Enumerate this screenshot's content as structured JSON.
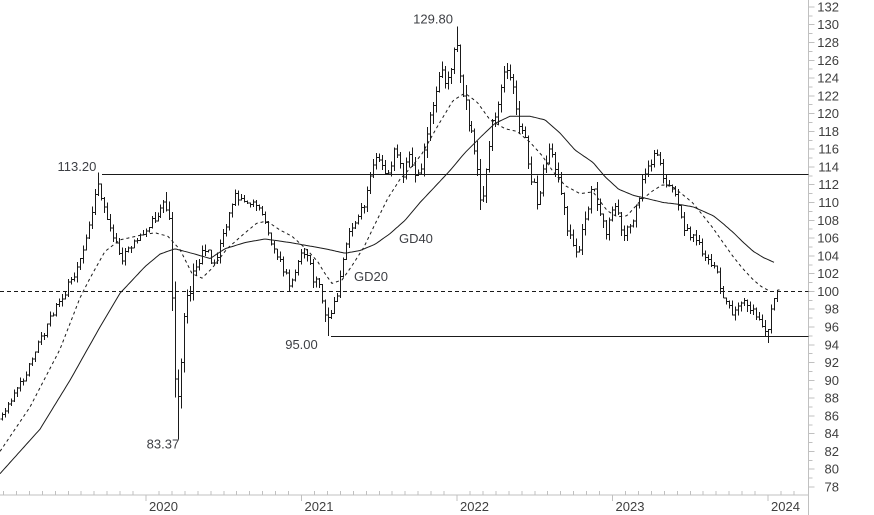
{
  "chart": {
    "type": "ohlc",
    "interval": "weekly",
    "background": "#ffffff",
    "colors": {
      "bars": "#1a1a1a",
      "gd40_line": "#1a1a1a",
      "gd20_line": "#1a1a1a",
      "level_lines": "#1a1a1a",
      "axis": "#c0c0c0",
      "axis_text": "#3f3f3f",
      "annotation_text": "#3d3f44"
    },
    "y_axis": {
      "side": "right",
      "min": 78,
      "max": 132,
      "step": 2,
      "tick_labels": [
        132,
        130,
        128,
        126,
        124,
        122,
        120,
        118,
        116,
        114,
        112,
        110,
        108,
        106,
        104,
        102,
        100,
        98,
        96,
        94,
        92,
        90,
        88,
        86,
        84,
        82,
        80,
        78
      ]
    },
    "x_axis": {
      "tick_labels": [
        "2020",
        "2021",
        "2022",
        "2023",
        "2024"
      ],
      "minor_ticks": "months"
    },
    "levels": [
      {
        "label": "113.20",
        "price": 113.2,
        "style": "solid",
        "from_year": 2019.717,
        "label_year": 2019.556,
        "label_dy": -7,
        "name": "resistance"
      },
      {
        "label": "95.00",
        "price": 95.0,
        "style": "solid",
        "from_year": 2021.19,
        "label_year": 2021.0,
        "label_dy": 9,
        "name": "support"
      },
      {
        "label": "",
        "price": 100.0,
        "style": "dashed",
        "from_year": null,
        "label_year": null,
        "label_dy": 0,
        "name": "level-100"
      }
    ],
    "annotations": [
      {
        "text": "129.80",
        "year": 2021.846,
        "price": 130.6,
        "name": "high-label"
      },
      {
        "text": "83.37",
        "year": 2020.109,
        "price": 82.8,
        "name": "low-label"
      },
      {
        "text": "GD40",
        "year": 2021.736,
        "price": 105.9,
        "name": "gd40-label"
      },
      {
        "text": "GD20",
        "year": 2021.447,
        "price": 101.6,
        "name": "gd20-label"
      }
    ],
    "chart_data": {
      "note": "weekly OHLC bars; close-path anchors read from pixels [year, close]",
      "price": {
        "start_year": 2019.074,
        "end_year": 2024.048,
        "anchors": [
          [
            2019.074,
            86.0
          ],
          [
            2019.145,
            88.5
          ],
          [
            2019.235,
            91.0
          ],
          [
            2019.318,
            94.5
          ],
          [
            2019.415,
            98.0
          ],
          [
            2019.511,
            101.0
          ],
          [
            2019.608,
            105.5
          ],
          [
            2019.685,
            112.0
          ],
          [
            2019.736,
            108.5
          ],
          [
            2019.833,
            103.5
          ],
          [
            2019.929,
            106.0
          ],
          [
            2020.026,
            107.5
          ],
          [
            2020.109,
            109.8
          ],
          [
            2020.154,
            107.0
          ],
          [
            2020.18,
            96.0
          ],
          [
            2020.199,
            87.0
          ],
          [
            2020.225,
            92.0
          ],
          [
            2020.257,
            99.0
          ],
          [
            2020.302,
            101.5
          ],
          [
            2020.379,
            104.8
          ],
          [
            2020.444,
            103.0
          ],
          [
            2020.527,
            108.0
          ],
          [
            2020.572,
            111.0
          ],
          [
            2020.637,
            109.5
          ],
          [
            2020.701,
            110.5
          ],
          [
            2020.746,
            108.5
          ],
          [
            2020.797,
            106.0
          ],
          [
            2020.862,
            103.5
          ],
          [
            2020.926,
            100.5
          ],
          [
            2020.99,
            103.8
          ],
          [
            2021.035,
            104.5
          ],
          [
            2021.074,
            101.5
          ],
          [
            2021.119,
            100.0
          ],
          [
            2021.164,
            96.5
          ],
          [
            2021.196,
            97.5
          ],
          [
            2021.248,
            101.5
          ],
          [
            2021.305,
            106.5
          ],
          [
            2021.363,
            108.5
          ],
          [
            2021.402,
            110.0
          ],
          [
            2021.453,
            113.5
          ],
          [
            2021.492,
            115.5
          ],
          [
            2021.543,
            113.0
          ],
          [
            2021.601,
            115.8
          ],
          [
            2021.653,
            113.0
          ],
          [
            2021.698,
            115.5
          ],
          [
            2021.743,
            112.5
          ],
          [
            2021.775,
            114.5
          ],
          [
            2021.814,
            119.0
          ],
          [
            2021.859,
            122.0
          ],
          [
            2021.891,
            124.5
          ],
          [
            2021.936,
            123.0
          ],
          [
            2021.968,
            126.5
          ],
          [
            2021.994,
            128.6
          ],
          [
            2022.019,
            124.0
          ],
          [
            2022.051,
            121.5
          ],
          [
            2022.084,
            118.0
          ],
          [
            2022.116,
            115.5
          ],
          [
            2022.161,
            110.0
          ],
          [
            2022.193,
            115.0
          ],
          [
            2022.225,
            118.5
          ],
          [
            2022.264,
            121.5
          ],
          [
            2022.309,
            125.5
          ],
          [
            2022.354,
            123.5
          ],
          [
            2022.392,
            119.5
          ],
          [
            2022.437,
            117.0
          ],
          [
            2022.482,
            112.5
          ],
          [
            2022.521,
            110.0
          ],
          [
            2022.566,
            114.5
          ],
          [
            2022.605,
            116.5
          ],
          [
            2022.65,
            112.5
          ],
          [
            2022.695,
            108.5
          ],
          [
            2022.74,
            105.0
          ],
          [
            2022.778,
            104.0
          ],
          [
            2022.823,
            108.0
          ],
          [
            2022.875,
            112.5
          ],
          [
            2022.92,
            108.5
          ],
          [
            2022.952,
            106.5
          ],
          [
            2022.997,
            109.5
          ],
          [
            2023.026,
            110.5
          ],
          [
            2023.058,
            106.5
          ],
          [
            2023.103,
            107.5
          ],
          [
            2023.148,
            109.0
          ],
          [
            2023.187,
            112.5
          ],
          [
            2023.232,
            114.5
          ],
          [
            2023.277,
            115.5
          ],
          [
            2023.315,
            113.5
          ],
          [
            2023.36,
            111.5
          ],
          [
            2023.405,
            110.5
          ],
          [
            2023.45,
            107.5
          ],
          [
            2023.489,
            106.5
          ],
          [
            2023.534,
            105.5
          ],
          [
            2023.579,
            104.5
          ],
          [
            2023.617,
            103.0
          ],
          [
            2023.662,
            102.5
          ],
          [
            2023.701,
            99.5
          ],
          [
            2023.746,
            98.0
          ],
          [
            2023.791,
            97.5
          ],
          [
            2023.83,
            99.5
          ],
          [
            2023.875,
            98.5
          ],
          [
            2023.913,
            97.0
          ],
          [
            2023.952,
            96.0
          ],
          [
            2023.991,
            95.3
          ],
          [
            2024.023,
            99.0
          ],
          [
            2024.048,
            100.3
          ]
        ],
        "extremes": [
          {
            "year": 2019.685,
            "type": "high",
            "price": 113.4
          },
          {
            "year": 2020.199,
            "type": "low",
            "price": 83.37
          },
          {
            "year": 2021.164,
            "type": "low",
            "price": 95.0
          },
          {
            "year": 2021.994,
            "type": "high",
            "price": 129.8
          },
          {
            "year": 2023.991,
            "type": "low",
            "price": 94.2
          }
        ],
        "volatility": [
          [
            2019.074,
            1.1
          ],
          [
            2019.69,
            1.9
          ],
          [
            2020.02,
            1.4
          ],
          [
            2020.15,
            3.5
          ],
          [
            2020.2,
            6.5
          ],
          [
            2020.26,
            3.0
          ],
          [
            2020.41,
            1.7
          ],
          [
            2020.99,
            1.6
          ],
          [
            2021.16,
            2.3
          ],
          [
            2021.38,
            1.7
          ],
          [
            2021.63,
            2.1
          ],
          [
            2021.86,
            2.7
          ],
          [
            2021.99,
            3.2
          ],
          [
            2022.16,
            3.2
          ],
          [
            2022.31,
            2.5
          ],
          [
            2022.57,
            2.3
          ],
          [
            2022.78,
            2.3
          ],
          [
            2022.95,
            2.1
          ],
          [
            2023.23,
            1.9
          ],
          [
            2023.52,
            1.7
          ],
          [
            2023.79,
            1.7
          ],
          [
            2023.99,
            2.1
          ],
          [
            2024.048,
            1.5
          ]
        ]
      },
      "gd40": {
        "name": "GD40",
        "style": "solid",
        "anchors": [
          [
            2019.061,
            79.5
          ],
          [
            2019.318,
            84.5
          ],
          [
            2019.511,
            90.0
          ],
          [
            2019.704,
            96.0
          ],
          [
            2019.833,
            99.8
          ],
          [
            2019.994,
            102.8
          ],
          [
            2020.09,
            104.2
          ],
          [
            2020.186,
            104.8
          ],
          [
            2020.315,
            104.2
          ],
          [
            2020.412,
            103.7
          ],
          [
            2020.508,
            104.8
          ],
          [
            2020.637,
            105.5
          ],
          [
            2020.765,
            105.9
          ],
          [
            2020.926,
            105.5
          ],
          [
            2021.055,
            105.1
          ],
          [
            2021.151,
            104.8
          ],
          [
            2021.28,
            104.3
          ],
          [
            2021.376,
            104.6
          ],
          [
            2021.473,
            105.3
          ],
          [
            2021.569,
            106.5
          ],
          [
            2021.666,
            108.0
          ],
          [
            2021.762,
            110.0
          ],
          [
            2021.859,
            111.8
          ],
          [
            2021.955,
            113.6
          ],
          [
            2022.051,
            115.6
          ],
          [
            2022.148,
            117.3
          ],
          [
            2022.244,
            118.9
          ],
          [
            2022.341,
            119.7
          ],
          [
            2022.469,
            119.7
          ],
          [
            2022.566,
            119.3
          ],
          [
            2022.663,
            117.8
          ],
          [
            2022.759,
            115.9
          ],
          [
            2022.875,
            114.5
          ],
          [
            2022.952,
            112.9
          ],
          [
            2023.039,
            111.5
          ],
          [
            2023.135,
            110.8
          ],
          [
            2023.232,
            110.4
          ],
          [
            2023.328,
            110.0
          ],
          [
            2023.424,
            109.8
          ],
          [
            2023.521,
            109.5
          ],
          [
            2023.585,
            109.0
          ],
          [
            2023.649,
            108.5
          ],
          [
            2023.713,
            107.6
          ],
          [
            2023.778,
            106.6
          ],
          [
            2023.842,
            105.5
          ],
          [
            2023.906,
            104.5
          ],
          [
            2023.971,
            103.8
          ],
          [
            2024.048,
            103.2
          ]
        ]
      },
      "gd20": {
        "name": "GD20",
        "style": "dashed",
        "anchors": [
          [
            2019.061,
            82.0
          ],
          [
            2019.254,
            87.0
          ],
          [
            2019.447,
            93.5
          ],
          [
            2019.576,
            99.3
          ],
          [
            2019.64,
            101.5
          ],
          [
            2019.736,
            104.5
          ],
          [
            2019.833,
            105.8
          ],
          [
            2019.961,
            106.3
          ],
          [
            2020.058,
            106.6
          ],
          [
            2020.141,
            106.2
          ],
          [
            2020.219,
            104.7
          ],
          [
            2020.296,
            102.0
          ],
          [
            2020.36,
            101.5
          ],
          [
            2020.425,
            102.6
          ],
          [
            2020.521,
            104.8
          ],
          [
            2020.624,
            106.4
          ],
          [
            2020.714,
            107.7
          ],
          [
            2020.778,
            107.9
          ],
          [
            2020.862,
            106.9
          ],
          [
            2020.939,
            106.2
          ],
          [
            2021.003,
            105.2
          ],
          [
            2021.055,
            104.3
          ],
          [
            2021.106,
            103.3
          ],
          [
            2021.151,
            102.0
          ],
          [
            2021.196,
            100.9
          ],
          [
            2021.261,
            101.3
          ],
          [
            2021.325,
            102.9
          ],
          [
            2021.402,
            105.0
          ],
          [
            2021.479,
            107.8
          ],
          [
            2021.556,
            110.5
          ],
          [
            2021.633,
            112.6
          ],
          [
            2021.717,
            114.2
          ],
          [
            2021.775,
            115.5
          ],
          [
            2021.872,
            118.5
          ],
          [
            2021.975,
            121.5
          ],
          [
            2022.051,
            122.3
          ],
          [
            2022.129,
            121.3
          ],
          [
            2022.212,
            119.3
          ],
          [
            2022.309,
            118.3
          ],
          [
            2022.386,
            118.0
          ],
          [
            2022.469,
            116.8
          ],
          [
            2022.546,
            115.3
          ],
          [
            2022.617,
            113.5
          ],
          [
            2022.695,
            111.9
          ],
          [
            2022.791,
            111.0
          ],
          [
            2022.875,
            111.2
          ],
          [
            2022.965,
            109.1
          ],
          [
            2023.029,
            108.4
          ],
          [
            2023.093,
            108.5
          ],
          [
            2023.18,
            110.2
          ],
          [
            2023.257,
            111.3
          ],
          [
            2023.322,
            112.0
          ],
          [
            2023.386,
            111.8
          ],
          [
            2023.45,
            110.9
          ],
          [
            2023.514,
            110.0
          ],
          [
            2023.579,
            108.6
          ],
          [
            2023.643,
            107.2
          ],
          [
            2023.707,
            105.6
          ],
          [
            2023.772,
            104.0
          ],
          [
            2023.836,
            102.6
          ],
          [
            2023.9,
            101.4
          ],
          [
            2023.952,
            100.6
          ],
          [
            2024.004,
            100.1
          ]
        ]
      }
    }
  }
}
